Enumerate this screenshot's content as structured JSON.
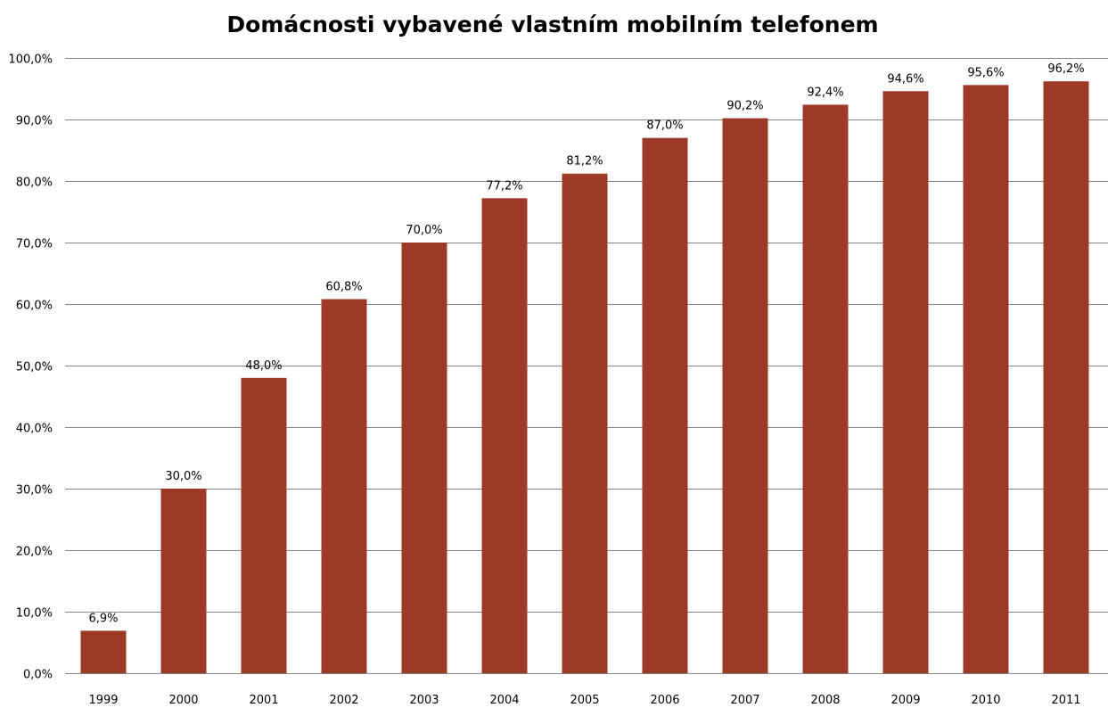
{
  "chart_data": {
    "type": "bar",
    "title": "Domácnosti vybavené vlastním mobilním telefonem",
    "xlabel": "",
    "ylabel": "",
    "categories": [
      "1999",
      "2000",
      "2001",
      "2002",
      "2003",
      "2004",
      "2005",
      "2006",
      "2007",
      "2008",
      "2009",
      "2010",
      "2011"
    ],
    "values": [
      6.9,
      30.0,
      48.0,
      60.8,
      70.0,
      77.2,
      81.2,
      87.0,
      90.2,
      92.4,
      94.6,
      95.6,
      96.2
    ],
    "data_labels": [
      "6,9%",
      "30,0%",
      "48,0%",
      "60,8%",
      "70,0%",
      "77,2%",
      "81,2%",
      "87,0%",
      "90,2%",
      "92,4%",
      "94,6%",
      "95,6%",
      "96,2%"
    ],
    "ylim": [
      0,
      100
    ],
    "y_ticks": [
      0,
      10,
      20,
      30,
      40,
      50,
      60,
      70,
      80,
      90,
      100
    ],
    "y_tick_labels": [
      "0,0%",
      "10,0%",
      "20,0%",
      "30,0%",
      "40,0%",
      "50,0%",
      "60,0%",
      "70,0%",
      "80,0%",
      "90,0%",
      "100,0%"
    ],
    "grid": true,
    "legend": "none",
    "bar_color": "#9C3927",
    "grid_color": "#868686"
  }
}
